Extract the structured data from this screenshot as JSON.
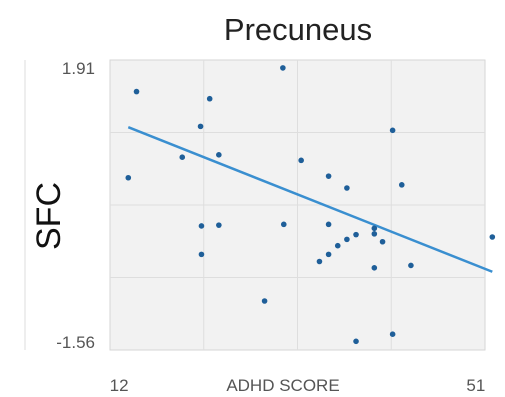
{
  "chart_data": {
    "type": "scatter",
    "title": "Precuneus",
    "xlabel": "ADHD SCORE",
    "ylabel": "SFC",
    "xlim": [
      11,
      52
    ],
    "ylim": [
      -1.66,
      2.01
    ],
    "x_ticks": [
      12,
      51
    ],
    "x_tick_labels": [
      "12",
      "51"
    ],
    "y_ticks": [
      1.91,
      -1.56
    ],
    "y_tick_labels": [
      "1.91",
      "-1.56"
    ],
    "grid": true,
    "legend": "none",
    "point_color": "#1f5f99",
    "line_color": "#3a8fd0",
    "points": [
      {
        "x": 13.0,
        "y": 0.52
      },
      {
        "x": 13.9,
        "y": 1.61
      },
      {
        "x": 18.9,
        "y": 0.78
      },
      {
        "x": 20.9,
        "y": 1.17
      },
      {
        "x": 21.0,
        "y": -0.09
      },
      {
        "x": 21.0,
        "y": -0.45
      },
      {
        "x": 21.9,
        "y": 1.52
      },
      {
        "x": 22.9,
        "y": 0.81
      },
      {
        "x": 22.9,
        "y": -0.08
      },
      {
        "x": 27.9,
        "y": -1.04
      },
      {
        "x": 29.9,
        "y": 1.91
      },
      {
        "x": 30.0,
        "y": -0.07
      },
      {
        "x": 31.9,
        "y": 0.74
      },
      {
        "x": 33.9,
        "y": -0.54
      },
      {
        "x": 34.9,
        "y": -0.45
      },
      {
        "x": 34.9,
        "y": -0.07
      },
      {
        "x": 34.9,
        "y": 0.54
      },
      {
        "x": 35.9,
        "y": -0.34
      },
      {
        "x": 36.9,
        "y": -0.26
      },
      {
        "x": 36.9,
        "y": 0.39
      },
      {
        "x": 37.9,
        "y": -0.2
      },
      {
        "x": 37.9,
        "y": -1.55
      },
      {
        "x": 39.9,
        "y": -0.12
      },
      {
        "x": 39.9,
        "y": -0.62
      },
      {
        "x": 39.9,
        "y": -0.19
      },
      {
        "x": 40.8,
        "y": -0.29
      },
      {
        "x": 41.9,
        "y": 1.12
      },
      {
        "x": 41.9,
        "y": -1.46
      },
      {
        "x": 42.9,
        "y": 0.43
      },
      {
        "x": 43.9,
        "y": -0.59
      },
      {
        "x": 52.8,
        "y": -0.23
      }
    ],
    "trend_line": {
      "x": [
        13.0,
        52.8
      ],
      "y": [
        1.16,
        -0.67
      ]
    }
  }
}
